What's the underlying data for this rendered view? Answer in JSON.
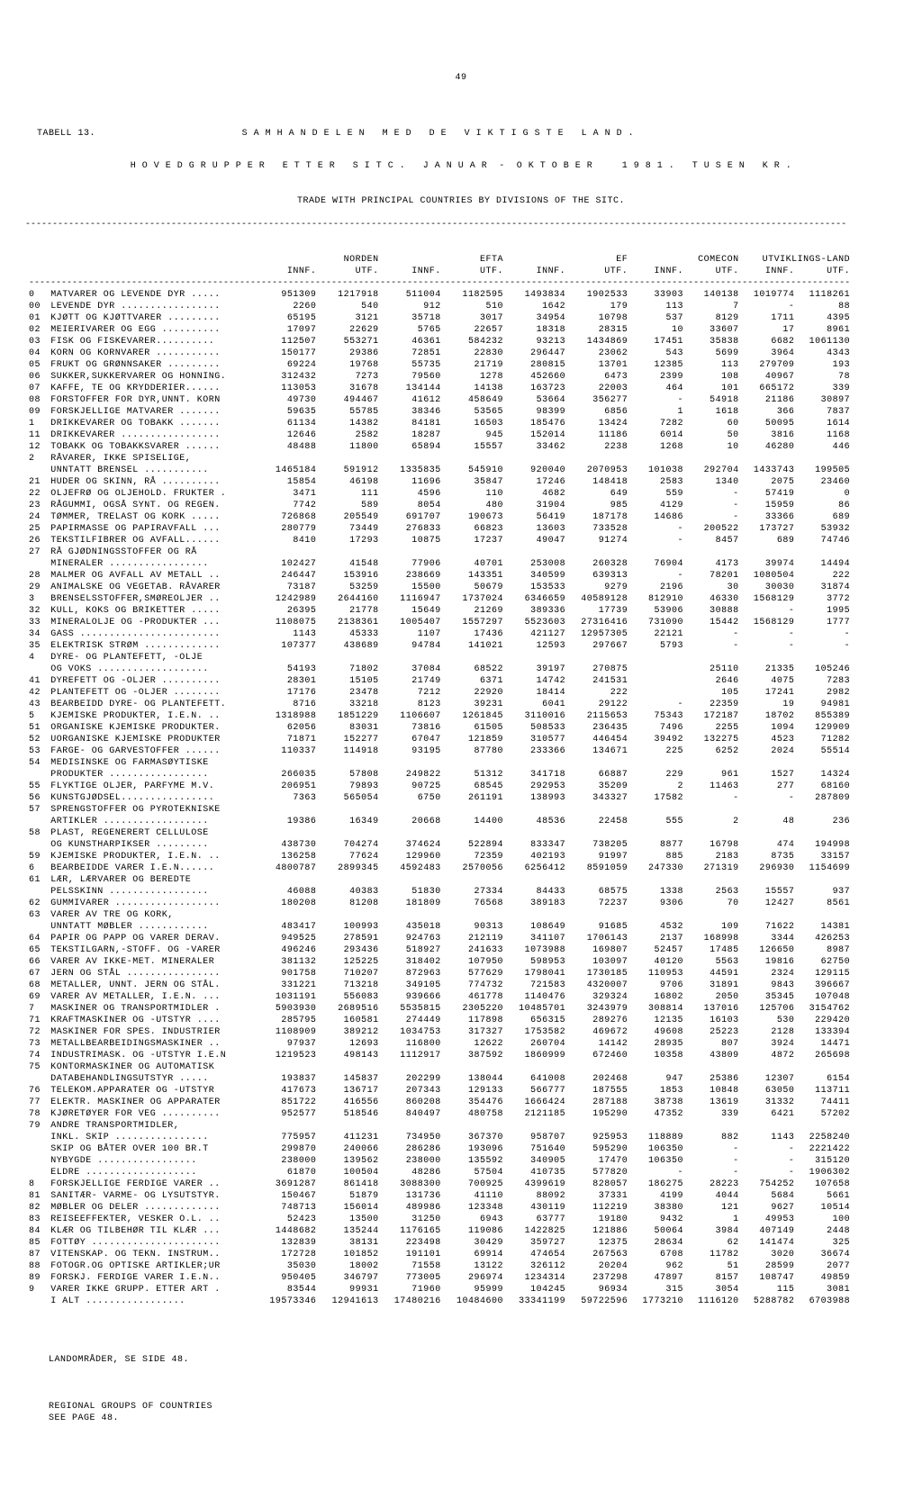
{
  "page_number": "49",
  "table_label": "TABELL 13.",
  "title1": "S A M H A N D E L E N   M E D   D E   V I K T I G S T E   L A N D .",
  "title2": "H O V E D G R U P P E R   E T T E R   S I T C .   J A N U A R  -  O K T O B E R     1 9 8 1 .   T U S E N   K R .",
  "subtitle": "TRADE WITH PRINCIPAL COUNTRIES BY DIVISIONS OF THE SITC.",
  "group_headers": [
    "NORDEN",
    "EFTA",
    "EF",
    "COMECON",
    "UTVIKLINGS-LAND"
  ],
  "sub_headers": [
    "INNF.",
    "UTF.",
    "INNF.",
    "UTF.",
    "INNF.",
    "UTF.",
    "INNF.",
    "UTF.",
    "INNF.",
    "UTF."
  ],
  "rows": [
    [
      "0",
      "MATVARER OG LEVENDE DYR .....",
      "951309",
      "1217918",
      "511004",
      "1182595",
      "1493834",
      "1902533",
      "33903",
      "140138",
      "1019774",
      "1118261"
    ],
    [
      "00",
      "LEVENDE DYR .................",
      "2260",
      "540",
      "912",
      "510",
      "1642",
      "179",
      "113",
      "7",
      "-",
      "88"
    ],
    [
      "01",
      "KJØTT OG KJØTTVARER .........",
      "65195",
      "3121",
      "35718",
      "3017",
      "34954",
      "10798",
      "537",
      "8129",
      "1711",
      "4395"
    ],
    [
      "02",
      "MEIERIVARER OG EGG ..........",
      "17097",
      "22629",
      "5765",
      "22657",
      "18318",
      "28315",
      "10",
      "33607",
      "17",
      "8961"
    ],
    [
      "03",
      "FISK OG FISKEVARER..........",
      "112507",
      "553271",
      "46361",
      "584232",
      "93213",
      "1434869",
      "17451",
      "35838",
      "6682",
      "1061130"
    ],
    [
      "04",
      "KORN OG KORNVARER ...........",
      "150177",
      "29386",
      "72851",
      "22830",
      "296447",
      "23062",
      "543",
      "5699",
      "3964",
      "4343"
    ],
    [
      "05",
      "FRUKT OG GRØNNSAKER .........",
      "69224",
      "19768",
      "55735",
      "21719",
      "280815",
      "13701",
      "12385",
      "113",
      "279709",
      "193"
    ],
    [
      "06",
      "SUKKER,SUKKERVARER OG HONNING.",
      "312432",
      "7273",
      "79560",
      "1278",
      "452660",
      "6473",
      "2399",
      "108",
      "40967",
      "78"
    ],
    [
      "07",
      "KAFFE, TE OG KRYDDERIER......",
      "113053",
      "31678",
      "134144",
      "14138",
      "163723",
      "22003",
      "464",
      "101",
      "665172",
      "339"
    ],
    [
      "08",
      "FORSTOFFER FOR DYR,UNNT. KORN",
      "49730",
      "494467",
      "41612",
      "458649",
      "53664",
      "356277",
      "-",
      "54918",
      "21186",
      "30897"
    ],
    [
      "09",
      "FORSKJELLIGE MATVARER .......",
      "59635",
      "55785",
      "38346",
      "53565",
      "98399",
      "6856",
      "1",
      "1618",
      "366",
      "7837"
    ],
    [
      "",
      "",
      "",
      "",
      "",
      "",
      "",
      "",
      "",
      "",
      "",
      ""
    ],
    [
      "1",
      "DRIKKEVARER OG TOBAKK .......",
      "61134",
      "14382",
      "84181",
      "16503",
      "185476",
      "13424",
      "7282",
      "60",
      "50095",
      "1614"
    ],
    [
      "11",
      "DRIKKEVARER .................",
      "12646",
      "2582",
      "18287",
      "945",
      "152014",
      "11186",
      "6014",
      "50",
      "3816",
      "1168"
    ],
    [
      "12",
      "TOBAKK OG TOBAKKSVARER ......",
      "48488",
      "11800",
      "65894",
      "15557",
      "33462",
      "2238",
      "1268",
      "10",
      "46280",
      "446"
    ],
    [
      "",
      "",
      "",
      "",
      "",
      "",
      "",
      "",
      "",
      "",
      "",
      ""
    ],
    [
      "2",
      "RÅVARER, IKKE SPISELIGE,",
      "",
      "",
      "",
      "",
      "",
      "",
      "",
      "",
      "",
      ""
    ],
    [
      "",
      "  UNNTATT BRENSEL ...........",
      "1465184",
      "591912",
      "1335835",
      "545910",
      "920040",
      "2070953",
      "101038",
      "292704",
      "1433743",
      "199505"
    ],
    [
      "21",
      "HUDER OG SKINN, RÅ ..........",
      "15854",
      "46198",
      "11696",
      "35847",
      "17246",
      "148418",
      "2583",
      "1340",
      "2075",
      "23460"
    ],
    [
      "22",
      "OLJEFRØ OG OLJEHOLD. FRUKTER .",
      "3471",
      "111",
      "4596",
      "110",
      "4682",
      "649",
      "559",
      "-",
      "57419",
      "0"
    ],
    [
      "23",
      "RÅGUMMI, OGSÅ SYNT. OG REGEN.",
      "7742",
      "589",
      "8054",
      "480",
      "31904",
      "985",
      "4129",
      "-",
      "15959",
      "86"
    ],
    [
      "24",
      "TØMMER, TRELAST OG KORK .....",
      "726868",
      "205549",
      "691707",
      "190673",
      "56419",
      "187178",
      "14686",
      "-",
      "33366",
      "689"
    ],
    [
      "25",
      "PAPIRMASSE OG PAPIRAVFALL ...",
      "280779",
      "73449",
      "276833",
      "66823",
      "13603",
      "733528",
      "-",
      "200522",
      "173727",
      "53932"
    ],
    [
      "26",
      "TEKSTILFIBRER OG AVFALL......",
      "8410",
      "17293",
      "10875",
      "17237",
      "49047",
      "91274",
      "-",
      "8457",
      "689",
      "74746"
    ],
    [
      "27",
      "RÅ GJØDNINGSSTOFFER OG RÅ",
      "",
      "",
      "",
      "",
      "",
      "",
      "",
      "",
      "",
      ""
    ],
    [
      "",
      "  MINERALER .................",
      "102427",
      "41548",
      "77906",
      "40701",
      "253008",
      "260328",
      "76904",
      "4173",
      "39974",
      "14494"
    ],
    [
      "28",
      "MALMER OG AVFALL AV METALL ..",
      "246447",
      "153916",
      "238669",
      "143351",
      "340599",
      "639313",
      "-",
      "78201",
      "1080504",
      "222"
    ],
    [
      "29",
      "ANIMALSKE OG VEGETAB. RÅVARER",
      "73187",
      "53259",
      "15500",
      "50679",
      "153533",
      "9279",
      "2196",
      "30",
      "30030",
      "31874"
    ],
    [
      "",
      "",
      "",
      "",
      "",
      "",
      "",
      "",
      "",
      "",
      "",
      ""
    ],
    [
      "3",
      "BRENSELSSTOFFER,SMØREOLJER ..",
      "1242989",
      "2644160",
      "1116947",
      "1737024",
      "6346659",
      "40589128",
      "812910",
      "46330",
      "1568129",
      "3772"
    ],
    [
      "32",
      "KULL, KOKS OG BRIKETTER .....",
      "26395",
      "21778",
      "15649",
      "21269",
      "389336",
      "17739",
      "53906",
      "30888",
      "-",
      "1995"
    ],
    [
      "33",
      "MINERALOLJE OG -PRODUKTER ...",
      "1108075",
      "2138361",
      "1005407",
      "1557297",
      "5523603",
      "27316416",
      "731090",
      "15442",
      "1568129",
      "1777"
    ],
    [
      "34",
      "GASS ........................",
      "1143",
      "45333",
      "1107",
      "17436",
      "421127",
      "12957305",
      "22121",
      "-",
      "-",
      "-"
    ],
    [
      "35",
      "ELEKTRISK STRØM .............",
      "107377",
      "438689",
      "94784",
      "141021",
      "12593",
      "297667",
      "5793",
      "-",
      "-",
      "-"
    ],
    [
      "",
      "",
      "",
      "",
      "",
      "",
      "",
      "",
      "",
      "",
      "",
      ""
    ],
    [
      "4",
      "DYRE- OG PLANTEFETT, -OLJE",
      "",
      "",
      "",
      "",
      "",
      "",
      "",
      "",
      "",
      ""
    ],
    [
      "",
      "  OG VOKS ...................",
      "54193",
      "71802",
      "37084",
      "68522",
      "39197",
      "270875",
      "",
      "25110",
      "21335",
      "105246"
    ],
    [
      "41",
      "DYREFETT OG -OLJER ..........",
      "28301",
      "15105",
      "21749",
      "6371",
      "14742",
      "241531",
      "",
      "2646",
      "4075",
      "7283"
    ],
    [
      "42",
      "PLANTEFETT OG -OLJER ........",
      "17176",
      "23478",
      "7212",
      "22920",
      "18414",
      "222",
      "",
      "105",
      "17241",
      "2982"
    ],
    [
      "43",
      "BEARBEIDD DYRE- OG PLANTEFETT.",
      "8716",
      "33218",
      "8123",
      "39231",
      "6041",
      "29122",
      "-",
      "22359",
      "19",
      "94981"
    ],
    [
      "",
      "",
      "",
      "",
      "",
      "",
      "",
      "",
      "",
      "",
      "",
      ""
    ],
    [
      "5",
      "KJEMISKE PRODUKTER, I.E.N. ..",
      "1318988",
      "1851229",
      "1106607",
      "1261845",
      "3110016",
      "2115653",
      "75343",
      "172187",
      "18702",
      "855389"
    ],
    [
      "51",
      "ORGANISKE KJEMISKE PRODUKTER.",
      "62056",
      "83031",
      "73816",
      "61505",
      "508533",
      "236435",
      "7496",
      "2255",
      "1094",
      "129909"
    ],
    [
      "52",
      "UORGANISKE KJEMISKE PRODUKTER",
      "71871",
      "152277",
      "67047",
      "121859",
      "310577",
      "446454",
      "39492",
      "132275",
      "4523",
      "71282"
    ],
    [
      "53",
      "FARGE- OG GARVESTOFFER ......",
      "110337",
      "114918",
      "93195",
      "87780",
      "233366",
      "134671",
      "225",
      "6252",
      "2024",
      "55514"
    ],
    [
      "54",
      "MEDISINSKE OG FARMASØYTISKE",
      "",
      "",
      "",
      "",
      "",
      "",
      "",
      "",
      "",
      ""
    ],
    [
      "",
      "  PRODUKTER .................",
      "266035",
      "57808",
      "249822",
      "51312",
      "341718",
      "66887",
      "229",
      "961",
      "1527",
      "14324"
    ],
    [
      "55",
      "FLYKTIGE OLJER, PARFYME M.V.",
      "206951",
      "79893",
      "90725",
      "68545",
      "292953",
      "35209",
      "2",
      "11463",
      "277",
      "68160"
    ],
    [
      "56",
      "KUNSTGJØDSEL................",
      "7363",
      "565054",
      "6750",
      "261191",
      "138993",
      "343327",
      "17582",
      "-",
      "-",
      "287809"
    ],
    [
      "57",
      "SPRENGSTOFFER OG PYROTEKNISKE",
      "",
      "",
      "",
      "",
      "",
      "",
      "",
      "",
      "",
      ""
    ],
    [
      "",
      "  ARTIKLER ..................",
      "19386",
      "16349",
      "20668",
      "14400",
      "48536",
      "22458",
      "555",
      "2",
      "48",
      "236"
    ],
    [
      "58",
      "PLAST, REGENERERT CELLULOSE",
      "",
      "",
      "",
      "",
      "",
      "",
      "",
      "",
      "",
      ""
    ],
    [
      "",
      "  OG KUNSTHARPIKSER .........",
      "438730",
      "704274",
      "374624",
      "522894",
      "833347",
      "738205",
      "8877",
      "16798",
      "474",
      "194998"
    ],
    [
      "59",
      "KJEMISKE PRODUKTER, I.E.N. ..",
      "136258",
      "77624",
      "129960",
      "72359",
      "402193",
      "91997",
      "885",
      "2183",
      "8735",
      "33157"
    ],
    [
      "",
      "",
      "",
      "",
      "",
      "",
      "",
      "",
      "",
      "",
      "",
      ""
    ],
    [
      "6",
      "BEARBEIDDE VARER I.E.N......",
      "4800787",
      "2899345",
      "4592483",
      "2570056",
      "6256412",
      "8591059",
      "247330",
      "271319",
      "296930",
      "1154699"
    ],
    [
      "61",
      "LÆR, LÆRVARER OG BEREDTE",
      "",
      "",
      "",
      "",
      "",
      "",
      "",
      "",
      "",
      ""
    ],
    [
      "",
      "  PELSSKINN .................",
      "46088",
      "40383",
      "51830",
      "27334",
      "84433",
      "68575",
      "1338",
      "2563",
      "15557",
      "937"
    ],
    [
      "62",
      "GUMMIVARER ..................",
      "180208",
      "81208",
      "181809",
      "76568",
      "389183",
      "72237",
      "9306",
      "70",
      "12427",
      "8561"
    ],
    [
      "63",
      "VARER AV TRE OG KORK,",
      "",
      "",
      "",
      "",
      "",
      "",
      "",
      "",
      "",
      ""
    ],
    [
      "",
      "  UNNTATT MØBLER ............",
      "483417",
      "100993",
      "435018",
      "90313",
      "108649",
      "91685",
      "4532",
      "109",
      "71622",
      "14381"
    ],
    [
      "64",
      "PAPIR OG PAPP OG VARER DERAV.",
      "949525",
      "278591",
      "924763",
      "212119",
      "341107",
      "1706143",
      "2137",
      "168998",
      "3344",
      "426253"
    ],
    [
      "65",
      "TEKSTILGARN,-STOFF. OG -VARER",
      "496246",
      "293436",
      "518927",
      "241633",
      "1073988",
      "169807",
      "52457",
      "17485",
      "126650",
      "8987"
    ],
    [
      "66",
      "VARER AV IKKE-MET. MINERALER",
      "381132",
      "125225",
      "318402",
      "107950",
      "598953",
      "103097",
      "40120",
      "5563",
      "19816",
      "62750"
    ],
    [
      "67",
      "JERN OG STÅL ................",
      "901758",
      "710207",
      "872963",
      "577629",
      "1798041",
      "1730185",
      "110953",
      "44591",
      "2324",
      "129115"
    ],
    [
      "68",
      "METALLER, UNNT. JERN OG STÅL.",
      "331221",
      "713218",
      "349105",
      "774732",
      "721583",
      "4320007",
      "9706",
      "31891",
      "9843",
      "396667"
    ],
    [
      "69",
      "VARER AV METALLER, I.E.N. ...",
      "1031191",
      "556083",
      "939666",
      "461778",
      "1140476",
      "329324",
      "16802",
      "2050",
      "35345",
      "107048"
    ],
    [
      "",
      "",
      "",
      "",
      "",
      "",
      "",
      "",
      "",
      "",
      "",
      ""
    ],
    [
      "7",
      "MASKINER OG TRANSPORTMIDLER .",
      "5903930",
      "2689516",
      "5535815",
      "2305220",
      "10485701",
      "3243979",
      "308814",
      "137016",
      "125706",
      "3154762"
    ],
    [
      "71",
      "KRAFTMASKINER OG -UTSTYR ....",
      "285795",
      "160581",
      "274449",
      "117898",
      "656315",
      "289276",
      "12135",
      "16103",
      "530",
      "229420"
    ],
    [
      "72",
      "MASKINER FOR SPES. INDUSTRIER",
      "1108909",
      "389212",
      "1034753",
      "317327",
      "1753582",
      "469672",
      "49608",
      "25223",
      "2128",
      "133394"
    ],
    [
      "73",
      "METALLBEARBEIDINGSMASKINER ..",
      "97937",
      "12693",
      "116800",
      "12622",
      "260704",
      "14142",
      "28935",
      "807",
      "3924",
      "14471"
    ],
    [
      "74",
      "INDUSTRIMASK. OG -UTSTYR I.E.N",
      "1219523",
      "498143",
      "1112917",
      "387592",
      "1860999",
      "672460",
      "10358",
      "43809",
      "4872",
      "265698"
    ],
    [
      "75",
      "KONTORMASKINER OG AUTOMATISK",
      "",
      "",
      "",
      "",
      "",
      "",
      "",
      "",
      "",
      ""
    ],
    [
      "",
      "  DATABEHANDLINGSUTSTYR .....",
      "193837",
      "145837",
      "202299",
      "138044",
      "641008",
      "202468",
      "947",
      "25386",
      "12307",
      "6154"
    ],
    [
      "76",
      "TELEKOM.APPARATER OG -UTSTYR",
      "417673",
      "136717",
      "207343",
      "129133",
      "566777",
      "187555",
      "1853",
      "10848",
      "63050",
      "113711"
    ],
    [
      "77",
      "ELEKTR. MASKINER OG APPARATER",
      "851722",
      "416556",
      "860208",
      "354476",
      "1666424",
      "287188",
      "38738",
      "13619",
      "31332",
      "74411"
    ],
    [
      "78",
      "KJØRETØYER FOR VEG ..........",
      "952577",
      "518546",
      "840497",
      "480758",
      "2121185",
      "195290",
      "47352",
      "339",
      "6421",
      "57202"
    ],
    [
      "79",
      "ANDRE TRANSPORTMIDLER,",
      "",
      "",
      "",
      "",
      "",
      "",
      "",
      "",
      "",
      ""
    ],
    [
      "",
      "  INKL. SKIP ................",
      "775957",
      "411231",
      "734950",
      "367370",
      "958707",
      "925953",
      "118889",
      "882",
      "1143",
      "2258240"
    ],
    [
      "",
      "  SKIP OG BÅTER OVER 100 BR.T",
      "299870",
      "240066",
      "286286",
      "193096",
      "751640",
      "595290",
      "106350",
      "-",
      "-",
      "2221422"
    ],
    [
      "",
      "    NYBYGDE .................",
      "238000",
      "139562",
      "238000",
      "135592",
      "340905",
      "17470",
      "106350",
      "-",
      "-",
      "315120"
    ],
    [
      "",
      "    ELDRE ...................",
      "61870",
      "100504",
      "48286",
      "57504",
      "410735",
      "577820",
      "-",
      "-",
      "-",
      "1906302"
    ],
    [
      "",
      "",
      "",
      "",
      "",
      "",
      "",
      "",
      "",
      "",
      "",
      ""
    ],
    [
      "8",
      "FORSKJELLIGE FERDIGE VARER ..",
      "3691287",
      "861418",
      "3088300",
      "700925",
      "4399619",
      "828057",
      "186275",
      "28223",
      "754252",
      "107658"
    ],
    [
      "81",
      "SANITÆR- VARME- OG LYSUTSTYR.",
      "150467",
      "51879",
      "131736",
      "41110",
      "88092",
      "37331",
      "4199",
      "4044",
      "5684",
      "5661"
    ],
    [
      "82",
      "MØBLER OG DELER .............",
      "748713",
      "156014",
      "489986",
      "123348",
      "430119",
      "112219",
      "38380",
      "121",
      "9627",
      "10514"
    ],
    [
      "83",
      "REISEEFFEKTER, VESKER O.L. ..",
      "52423",
      "13500",
      "31250",
      "6943",
      "63777",
      "19180",
      "9432",
      "1",
      "49953",
      "100"
    ],
    [
      "84",
      "KLÆR OG TILBEHØR TIL KLÆR ...",
      "1448682",
      "135244",
      "1176165",
      "119086",
      "1422825",
      "121886",
      "50064",
      "3984",
      "407149",
      "2448"
    ],
    [
      "85",
      "FOTTØY ......................",
      "132839",
      "38131",
      "223498",
      "30429",
      "359727",
      "12375",
      "28634",
      "62",
      "141474",
      "325"
    ],
    [
      "87",
      "VITENSKAP. OG TEKN. INSTRUM..",
      "172728",
      "101852",
      "191101",
      "69914",
      "474654",
      "267563",
      "6708",
      "11782",
      "3020",
      "36674"
    ],
    [
      "88",
      "FOTOGR.OG OPTISKE ARTIKLER;UR",
      "35030",
      "18002",
      "71558",
      "13122",
      "326112",
      "20204",
      "962",
      "51",
      "28599",
      "2077"
    ],
    [
      "89",
      "FORSKJ. FERDIGE VARER I.E.N..",
      "950405",
      "346797",
      "773005",
      "296974",
      "1234314",
      "237298",
      "47897",
      "8157",
      "108747",
      "49859"
    ],
    [
      "",
      "",
      "",
      "",
      "",
      "",
      "",
      "",
      "",
      "",
      "",
      ""
    ],
    [
      "9",
      "VARER IKKE GRUPP. ETTER ART .",
      "83544",
      "99931",
      "71960",
      "95999",
      "104245",
      "96934",
      "315",
      "3054",
      "115",
      "3081"
    ]
  ],
  "total_row": [
    "",
    "I ALT .................",
    "19573346",
    "12941613",
    "17480216",
    "10484600",
    "33341199",
    "59722596",
    "1773210",
    "1116120",
    "5288782",
    "6703988"
  ],
  "footnote1": "LANDOMRÅDER, SE SIDE 48.",
  "footnote2": "REGIONAL GROUPS OF COUNTRIES\n    SEE PAGE 48."
}
